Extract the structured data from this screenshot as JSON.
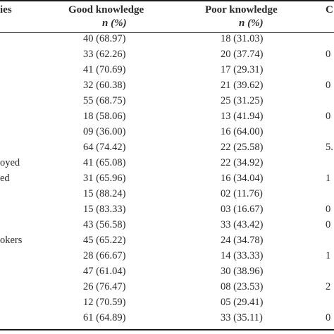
{
  "header": {
    "col_variables": "ies",
    "col_good": "Good knowledge",
    "col_good_unit": "n (%)",
    "col_poor": "Poor knowledge",
    "col_poor_unit": "n (%)",
    "col_or": "C"
  },
  "rows": [
    {
      "label": "",
      "good": "40 (68.97)",
      "poor": "18 (31.03)",
      "or": ""
    },
    {
      "label": "",
      "good": "33 (62.26)",
      "poor": "20 (37.74)",
      "or": "0"
    },
    {
      "label": "",
      "good": "41 (70.69)",
      "poor": "17 (29.31)",
      "or": ""
    },
    {
      "label": "",
      "good": "32 (60.38)",
      "poor": "21 (39.62)",
      "or": "0"
    },
    {
      "label": "",
      "good": "55 (68.75)",
      "poor": "25 (31.25)",
      "or": ""
    },
    {
      "label": "",
      "good": "18 (58.06)",
      "poor": "13 (41.94)",
      "or": "0"
    },
    {
      "label": "",
      "good": "09 (36.00)",
      "poor": "16 (64.00)",
      "or": ""
    },
    {
      "label": "",
      "good": "64 (74.42)",
      "poor": "22 (25.58)",
      "or": "5."
    },
    {
      "label": "oyed",
      "good": "41 (65.08)",
      "poor": "22 (34.92)",
      "or": ""
    },
    {
      "label": "ed",
      "good": "31 (65.96)",
      "poor": "16 (34.04)",
      "or": "1"
    },
    {
      "label": "",
      "good": "15 (88.24)",
      "poor": "02 (11.76)",
      "or": ""
    },
    {
      "label": "",
      "good": "15 (83.33)",
      "poor": "03 (16.67)",
      "or": "0"
    },
    {
      "label": "",
      "good": "43 (56.58)",
      "poor": "33 (43.42)",
      "or": "0"
    },
    {
      "label": "okers",
      "good": "45 (65.22)",
      "poor": "24 (34.78)",
      "or": ""
    },
    {
      "label": "",
      "good": "28 (66.67)",
      "poor": "14 (33.33)",
      "or": "1"
    },
    {
      "label": "",
      "good": "47 (61.04)",
      "poor": "30 (38.96)",
      "or": ""
    },
    {
      "label": "",
      "good": "26 (76.47)",
      "poor": "08 (23.53)",
      "or": "2"
    },
    {
      "label": "",
      "good": "12 (70.59)",
      "poor": "05 (29.41)",
      "or": ""
    },
    {
      "label": "",
      "good": "61 (64.89)",
      "poor": "33 (35.11)",
      "or": "0"
    }
  ]
}
